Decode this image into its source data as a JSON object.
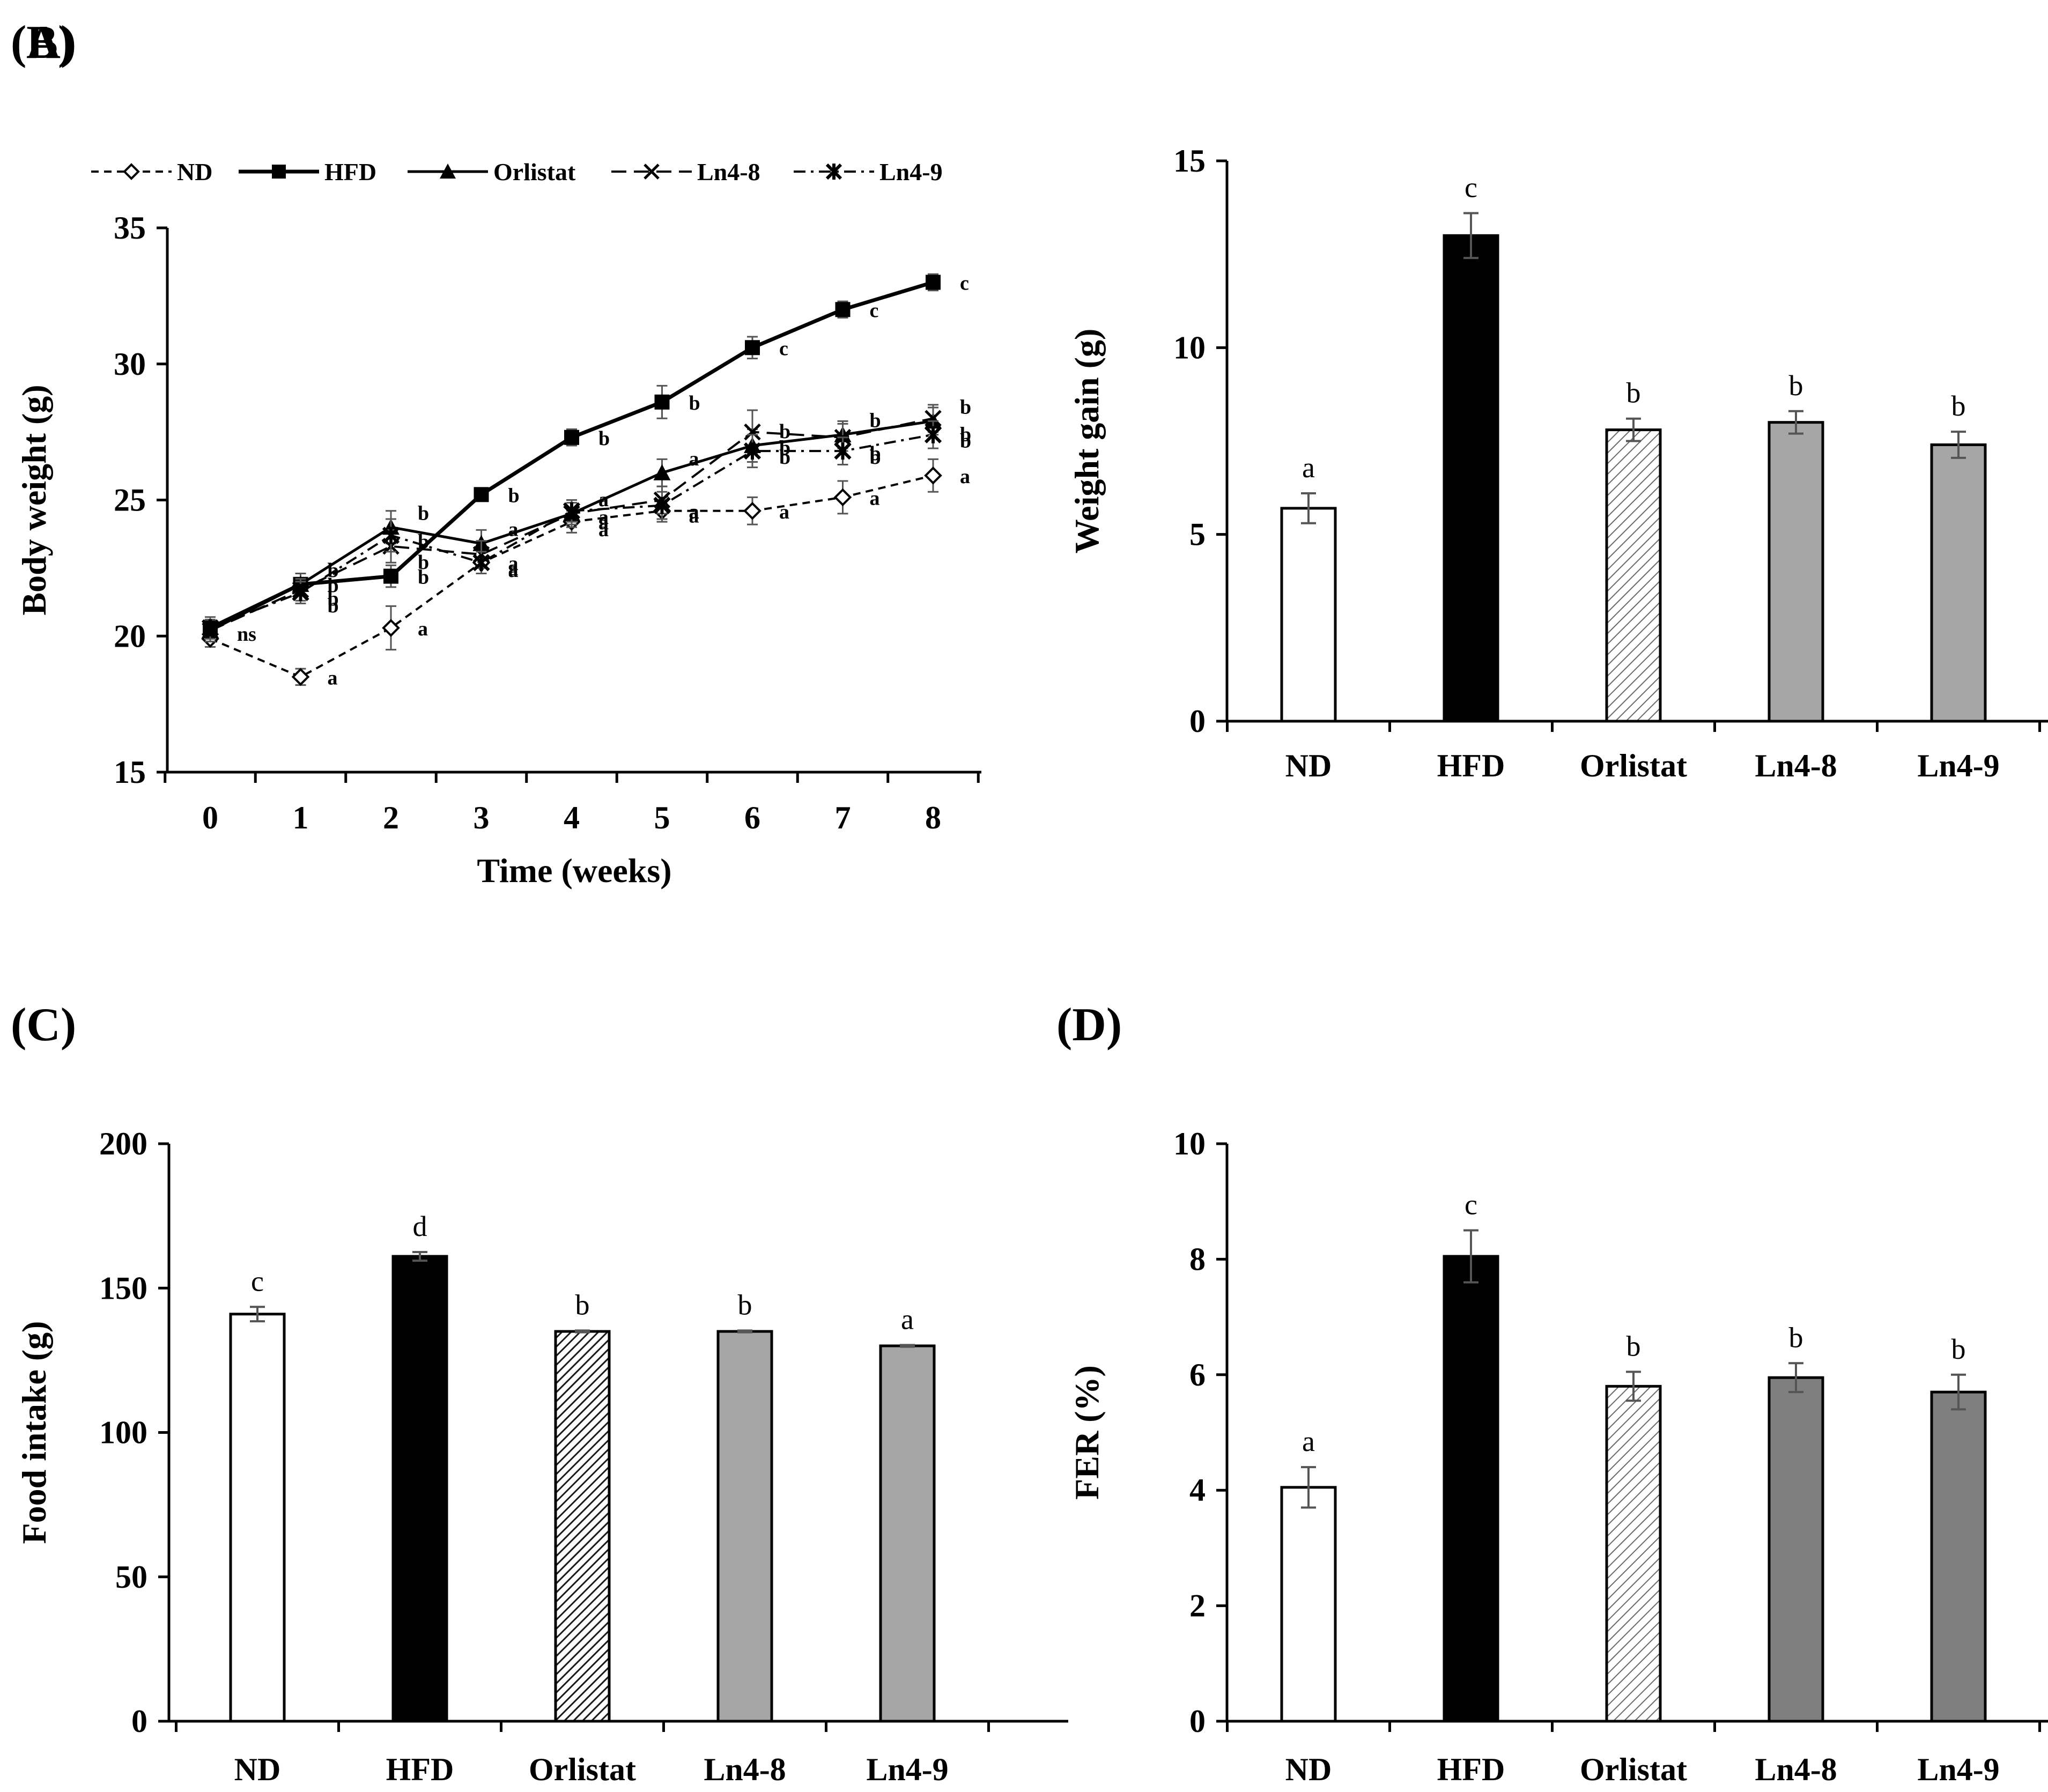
{
  "chart_data": [
    {
      "panel": "(A)",
      "type": "line",
      "xlabel": "Time (weeks)",
      "ylabel": "Body weight (g)",
      "x": [
        0,
        1,
        2,
        3,
        4,
        5,
        6,
        7,
        8
      ],
      "xticks": [
        "0",
        "1",
        "2",
        "3",
        "4",
        "5",
        "6",
        "7",
        "8"
      ],
      "ylim": [
        15,
        35
      ],
      "yticks": [
        "15",
        "20",
        "25",
        "30",
        "35"
      ],
      "legend": "top",
      "note": "ns",
      "series": [
        {
          "name": "ND",
          "style": "dashed",
          "marker": "open-diamond",
          "values": [
            19.9,
            18.5,
            20.3,
            22.7,
            24.2,
            24.6,
            24.6,
            25.1,
            25.9
          ],
          "errors": [
            0.3,
            0.3,
            0.8,
            0.4,
            0.4,
            0.4,
            0.5,
            0.6,
            0.6
          ],
          "labels": [
            "",
            "a",
            "a",
            "a",
            "a",
            "a",
            "a",
            "a",
            "a"
          ]
        },
        {
          "name": "HFD",
          "style": "solid-bold",
          "marker": "filled-square",
          "values": [
            20.3,
            21.9,
            22.2,
            25.2,
            27.3,
            28.6,
            30.6,
            32.0,
            33.0
          ],
          "errors": [
            0.3,
            0.4,
            0.4,
            0.2,
            0.3,
            0.6,
            0.4,
            0.3,
            0.3
          ],
          "labels": [
            "",
            "b",
            "b",
            "b",
            "b",
            "b",
            "c",
            "c",
            "c"
          ]
        },
        {
          "name": "Orlistat",
          "style": "solid",
          "marker": "filled-triangle",
          "values": [
            20.2,
            21.9,
            24.0,
            23.4,
            24.5,
            26.0,
            27.0,
            27.4,
            27.9
          ],
          "errors": [
            0.4,
            0.4,
            0.6,
            0.5,
            0.4,
            0.5,
            0.6,
            0.5,
            0.5
          ],
          "labels": [
            "",
            "b",
            "b",
            "a",
            "a",
            "a",
            "b",
            "b",
            "b"
          ]
        },
        {
          "name": "Ln4-8",
          "style": "long-dash",
          "marker": "x",
          "values": [
            20.2,
            21.7,
            23.3,
            23.0,
            24.5,
            25.0,
            27.5,
            27.3,
            28.0
          ],
          "errors": [
            0.4,
            0.4,
            0.6,
            0.5,
            0.5,
            0.5,
            0.8,
            0.5,
            0.5
          ],
          "labels": [
            "",
            "b",
            "b",
            "a",
            "a",
            "a",
            "b",
            "b",
            "b"
          ]
        },
        {
          "name": "Ln4-9",
          "style": "dash-dot",
          "marker": "asterisk",
          "values": [
            20.3,
            21.6,
            23.7,
            22.7,
            24.6,
            24.8,
            26.8,
            26.8,
            27.4
          ],
          "errors": [
            0.4,
            0.4,
            0.6,
            0.4,
            0.4,
            0.5,
            0.6,
            0.5,
            0.5
          ],
          "labels": [
            "ns",
            "b",
            "b",
            "a",
            "a",
            "a",
            "b",
            "b",
            "b"
          ]
        }
      ]
    },
    {
      "panel": "(B)",
      "type": "bar",
      "ylabel": "Weight gain (g)",
      "categories": [
        "ND",
        "HFD",
        "Orlistat",
        "Ln4-8",
        "Ln4-9"
      ],
      "values": [
        5.7,
        13.0,
        7.8,
        8.0,
        7.4
      ],
      "errors": [
        0.4,
        0.6,
        0.3,
        0.3,
        0.35
      ],
      "labels": [
        "a",
        "c",
        "b",
        "b",
        "b"
      ],
      "fills": [
        "white",
        "black",
        "hatch-light",
        "#a6a6a6",
        "#a6a6a6"
      ],
      "ylim": [
        0,
        15
      ],
      "yticks": [
        "0",
        "5",
        "10",
        "15"
      ]
    },
    {
      "panel": "(C)",
      "type": "bar",
      "ylabel": "Food intake (g)",
      "categories": [
        "ND",
        "HFD",
        "Orlistat",
        "Ln4-8",
        "Ln4-9"
      ],
      "values": [
        141,
        161,
        135,
        135,
        130
      ],
      "errors": [
        2.5,
        1.5,
        0.3,
        0.3,
        0.3
      ],
      "labels": [
        "c",
        "d",
        "b",
        "b",
        "a"
      ],
      "fills": [
        "white",
        "black",
        "hatch-dense",
        "#a6a6a6",
        "#a6a6a6"
      ],
      "ylim": [
        0,
        200
      ],
      "yticks": [
        "0",
        "50",
        "100",
        "150",
        "200"
      ]
    },
    {
      "panel": "(D)",
      "type": "bar",
      "ylabel": "FER (%)",
      "categories": [
        "ND",
        "HFD",
        "Orlistat",
        "Ln4-8",
        "Ln4-9"
      ],
      "values": [
        4.05,
        8.05,
        5.8,
        5.95,
        5.7
      ],
      "errors": [
        0.35,
        0.45,
        0.25,
        0.25,
        0.3
      ],
      "labels": [
        "a",
        "c",
        "b",
        "b",
        "b"
      ],
      "fills": [
        "white",
        "black",
        "hatch-light",
        "#7f7f7f",
        "#7f7f7f"
      ],
      "ylim": [
        0,
        10
      ],
      "yticks": [
        "0",
        "2",
        "4",
        "6",
        "8",
        "10"
      ]
    }
  ]
}
